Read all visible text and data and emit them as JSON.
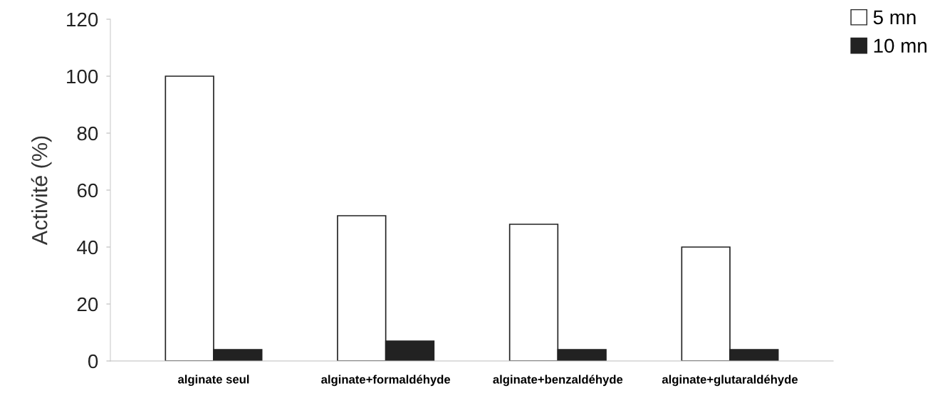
{
  "chart_data": {
    "type": "bar",
    "ylabel": "Activité (%)",
    "categories": [
      "alginate seul",
      "alginate+formaldéhyde",
      "alginate+benzaldéhyde",
      "alginate+glutaraldéhyde"
    ],
    "series": [
      {
        "name": "5 mn",
        "color": "#ffffff",
        "values": [
          100,
          51,
          48,
          40
        ]
      },
      {
        "name": "10 mn",
        "color": "#222222",
        "values": [
          4,
          7,
          4,
          4
        ]
      }
    ],
    "ylim": [
      0,
      120
    ],
    "yticks": [
      0,
      20,
      40,
      60,
      80,
      100,
      120
    ],
    "grid": false,
    "legend": "top right"
  }
}
